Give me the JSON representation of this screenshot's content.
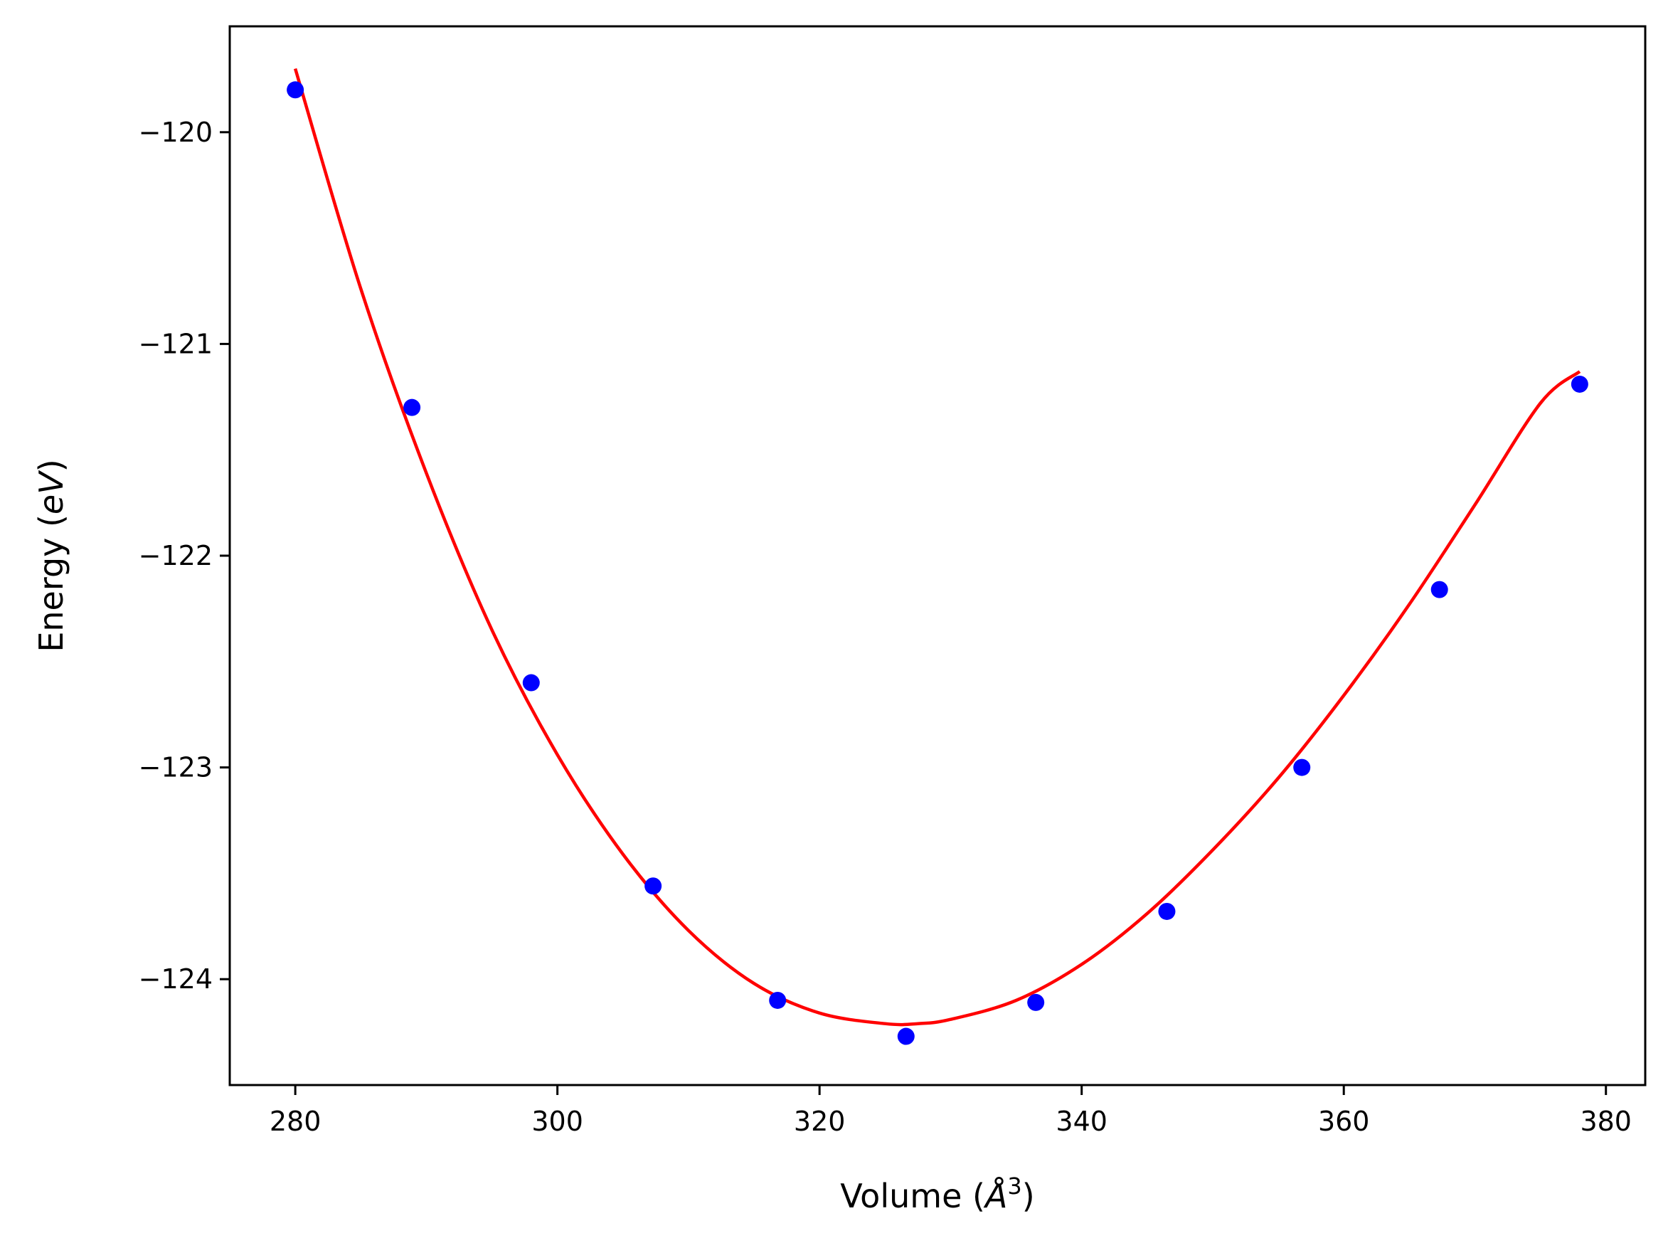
{
  "chart_data": {
    "type": "scatter",
    "title": "",
    "xlabel": {
      "text": "Volume (",
      "symbol": "Å",
      "superscript": "3",
      "close": ")"
    },
    "ylabel": {
      "text": "Energy (",
      "unit": "eV",
      "close": ")"
    },
    "xlim": [
      275,
      383
    ],
    "ylim": [
      -124.5,
      -119.5
    ],
    "xticks": [
      280,
      300,
      320,
      340,
      360,
      380
    ],
    "yticks": [
      -120,
      -121,
      -122,
      -123,
      -124
    ],
    "xtick_labels": [
      "280",
      "300",
      "320",
      "340",
      "360",
      "380"
    ],
    "ytick_labels": [
      "−120",
      "−121",
      "−122",
      "−123",
      "−124"
    ],
    "grid": false,
    "legend": null,
    "series": [
      {
        "kind": "points",
        "color": "#0000ff",
        "x": [
          280.0,
          288.9,
          298.0,
          307.3,
          316.8,
          326.6,
          336.5,
          346.5,
          356.8,
          367.3,
          378.0
        ],
        "y": [
          -119.8,
          -121.3,
          -122.6,
          -123.56,
          -124.1,
          -124.27,
          -124.11,
          -123.68,
          -123.0,
          -122.16,
          -121.19
        ]
      },
      {
        "kind": "fit-curve",
        "color": "#ff0000",
        "x": [
          280,
          285,
          290,
          295,
          300,
          305,
          310,
          315,
          320,
          325,
          327.5,
          330,
          335,
          340,
          345,
          350,
          355,
          360,
          365,
          370,
          375,
          378
        ],
        "y": [
          -119.7,
          -120.74,
          -121.61,
          -122.35,
          -122.94,
          -123.41,
          -123.77,
          -124.02,
          -124.16,
          -124.21,
          -124.21,
          -124.19,
          -124.1,
          -123.93,
          -123.69,
          -123.39,
          -123.05,
          -122.66,
          -122.23,
          -121.76,
          -121.28,
          -121.13
        ]
      }
    ]
  }
}
